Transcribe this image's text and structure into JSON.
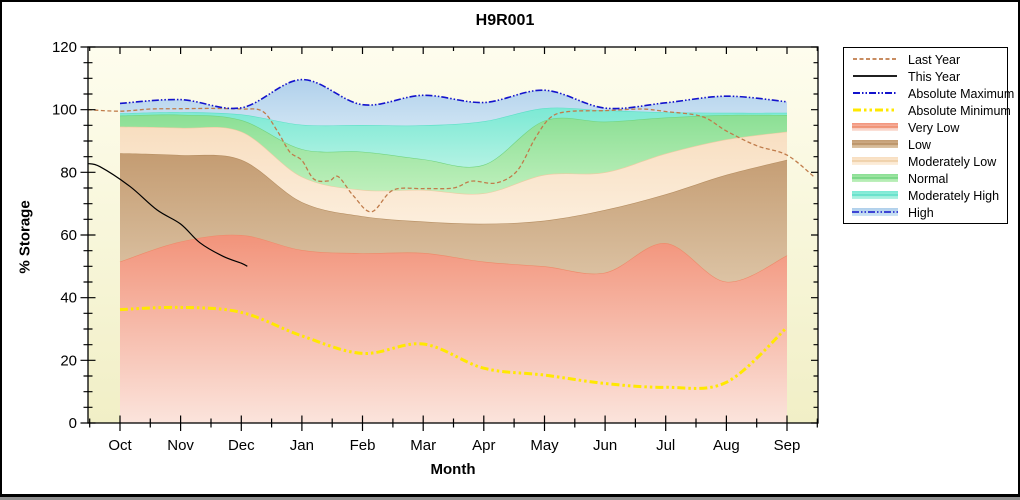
{
  "title": "H9R001",
  "axes": {
    "x": {
      "label": "Month",
      "tick_labels": [
        "Oct",
        "Nov",
        "Dec",
        "Jan",
        "Feb",
        "Mar",
        "Apr",
        "May",
        "Jun",
        "Jul",
        "Aug",
        "Sep"
      ]
    },
    "y": {
      "label": "% Storage",
      "tick_labels": [
        "0",
        "20",
        "40",
        "60",
        "80",
        "100",
        "120"
      ],
      "min": 0,
      "max": 120,
      "major_step": 20,
      "minor_step": 5
    }
  },
  "legend": {
    "items": [
      {
        "label": "Last Year",
        "ref": "last_year",
        "kind": "line"
      },
      {
        "label": "This Year",
        "ref": "this_year",
        "kind": "line"
      },
      {
        "label": "Absolute Maximum",
        "ref": "absolute_maximum",
        "kind": "line"
      },
      {
        "label": "Absolute Minimum",
        "ref": "absolute_minimum",
        "kind": "line"
      },
      {
        "label": "Very Low",
        "ref": "very_low",
        "kind": "band"
      },
      {
        "label": "Low",
        "ref": "low",
        "kind": "band"
      },
      {
        "label": "Moderately Low",
        "ref": "moderately_low",
        "kind": "band"
      },
      {
        "label": "Normal",
        "ref": "normal",
        "kind": "band"
      },
      {
        "label": "Moderately High",
        "ref": "moderately_high",
        "kind": "band"
      },
      {
        "label": "High",
        "ref": "high",
        "kind": "band_line",
        "line_ref": "absolute_maximum"
      }
    ]
  },
  "chart_data": {
    "type": "area",
    "title": "H9R001",
    "xlabel": "Month",
    "ylabel": "% Storage",
    "ylim": [
      0,
      120
    ],
    "grid": false,
    "legend_position": "right",
    "categories": [
      "Oct",
      "Nov",
      "Dec",
      "Jan",
      "Feb",
      "Mar",
      "Apr",
      "May",
      "Jun",
      "Jul",
      "Aug",
      "Sep"
    ],
    "plot_background": {
      "top": "#FEFDEE",
      "bottom": "#F1EFC6"
    },
    "bands": [
      {
        "name": "very_low",
        "label": "Very Low",
        "top_values": [
          51.5,
          57.9,
          60,
          55.2,
          54.2,
          54.3,
          51.5,
          50,
          48,
          57.4,
          45.1,
          53.5
        ],
        "fill_top": "#F2937A",
        "fill_bottom": "#FBE4DC",
        "edge": "#EE8A69"
      },
      {
        "name": "low",
        "label": "Low",
        "top_values": [
          86.1,
          85.5,
          84,
          70.5,
          66,
          64.3,
          63.6,
          64.6,
          68,
          73,
          79.2,
          84
        ],
        "fill_top": "#C49C72",
        "fill_bottom": "#DCC3A4",
        "edge": "#B78F62"
      },
      {
        "name": "moderately_low",
        "label": "Moderately Low",
        "top_values": [
          94.6,
          94.2,
          93,
          78.6,
          74.4,
          74.4,
          73.3,
          79.2,
          80,
          86,
          90.5,
          93
        ],
        "fill_top": "#F8DEC0",
        "fill_bottom": "#FCEEDC",
        "edge": "#EDCCA2"
      },
      {
        "name": "normal",
        "label": "Normal",
        "top_values": [
          98.1,
          98.4,
          96.7,
          87.4,
          86.6,
          84.2,
          82.4,
          96.5,
          96.2,
          97.5,
          98.3,
          98.3
        ],
        "fill_top": "#8BDF94",
        "fill_bottom": "#C0F0BD",
        "edge": "#70D480"
      },
      {
        "name": "moderately_high",
        "label": "Moderately High",
        "top_values": [
          98.8,
          99.2,
          98.5,
          95.2,
          95.1,
          95,
          96.3,
          100.5,
          99.8,
          99.2,
          99,
          99
        ],
        "fill_top": "#7BE9D4",
        "fill_bottom": "#B3F2E3",
        "edge": "#5DDFC7"
      },
      {
        "name": "high",
        "label": "High",
        "top_values": [
          102,
          103.2,
          100.6,
          109.6,
          101.6,
          104.6,
          102.3,
          106.2,
          100.5,
          102.2,
          104.3,
          102.5
        ],
        "fill_top": "#B0D0EB",
        "fill_bottom": "#CDE3F3",
        "edge": null
      }
    ],
    "lines": [
      {
        "name": "last_year",
        "label": "Last Year",
        "color": "#C07C4B",
        "width": 1.3,
        "dash": "4 2.5",
        "points": [
          [
            -0.53,
            100
          ],
          [
            0,
            99.5
          ],
          [
            0.5,
            100.2
          ],
          [
            1,
            100.3
          ],
          [
            1.5,
            100.4
          ],
          [
            2,
            100.2
          ],
          [
            2.35,
            99.5
          ],
          [
            2.6,
            93
          ],
          [
            2.8,
            86.5
          ],
          [
            3,
            83.8
          ],
          [
            3.2,
            77.8
          ],
          [
            3.45,
            77.3
          ],
          [
            3.6,
            78.6
          ],
          [
            3.85,
            72.5
          ],
          [
            4.15,
            67.4
          ],
          [
            4.5,
            74.3
          ],
          [
            5,
            74.8
          ],
          [
            5.5,
            75
          ],
          [
            5.8,
            77.2
          ],
          [
            6.2,
            76.6
          ],
          [
            6.55,
            80.5
          ],
          [
            6.85,
            91
          ],
          [
            7.1,
            97.5
          ],
          [
            7.4,
            99.4
          ],
          [
            8,
            99.7
          ],
          [
            8.6,
            100.2
          ],
          [
            9,
            99.4
          ],
          [
            9.6,
            97.8
          ],
          [
            10,
            93.2
          ],
          [
            10.5,
            88.5
          ],
          [
            11,
            85.5
          ],
          [
            11.45,
            78.5
          ]
        ]
      },
      {
        "name": "this_year",
        "label": "This Year",
        "color": "#000000",
        "width": 1.2,
        "dash": null,
        "points": [
          [
            -0.53,
            82.8
          ],
          [
            -0.33,
            81.8
          ],
          [
            0.17,
            75.4
          ],
          [
            0.61,
            68
          ],
          [
            1,
            63.5
          ],
          [
            1.32,
            57.5
          ],
          [
            1.7,
            53.2
          ],
          [
            2,
            51
          ],
          [
            2.1,
            50
          ]
        ]
      },
      {
        "name": "absolute_maximum",
        "label": "Absolute Maximum",
        "color": "#1313CC",
        "width": 1.6,
        "dash": "7 2 1.5 2 1.5 2",
        "points": [
          [
            0,
            102
          ],
          [
            1,
            103.2
          ],
          [
            2,
            100.6
          ],
          [
            3,
            109.6
          ],
          [
            4,
            101.6
          ],
          [
            5,
            104.6
          ],
          [
            6,
            102.3
          ],
          [
            7,
            106.2
          ],
          [
            8,
            100.5
          ],
          [
            9,
            102.2
          ],
          [
            10,
            104.3
          ],
          [
            11,
            102.5
          ]
        ]
      },
      {
        "name": "absolute_minimum",
        "label": "Absolute Minimum",
        "color": "#FFE800",
        "width": 3,
        "dash": "8 3 2.5 3 2.5 3",
        "points": [
          [
            0,
            36.2
          ],
          [
            1,
            36.9
          ],
          [
            2,
            35.3
          ],
          [
            3,
            27.8
          ],
          [
            4,
            22.2
          ],
          [
            5,
            25.2
          ],
          [
            6,
            17.5
          ],
          [
            7,
            15.3
          ],
          [
            8,
            12.6
          ],
          [
            9,
            11.4
          ],
          [
            10,
            13
          ],
          [
            11,
            30.5
          ]
        ]
      }
    ]
  }
}
